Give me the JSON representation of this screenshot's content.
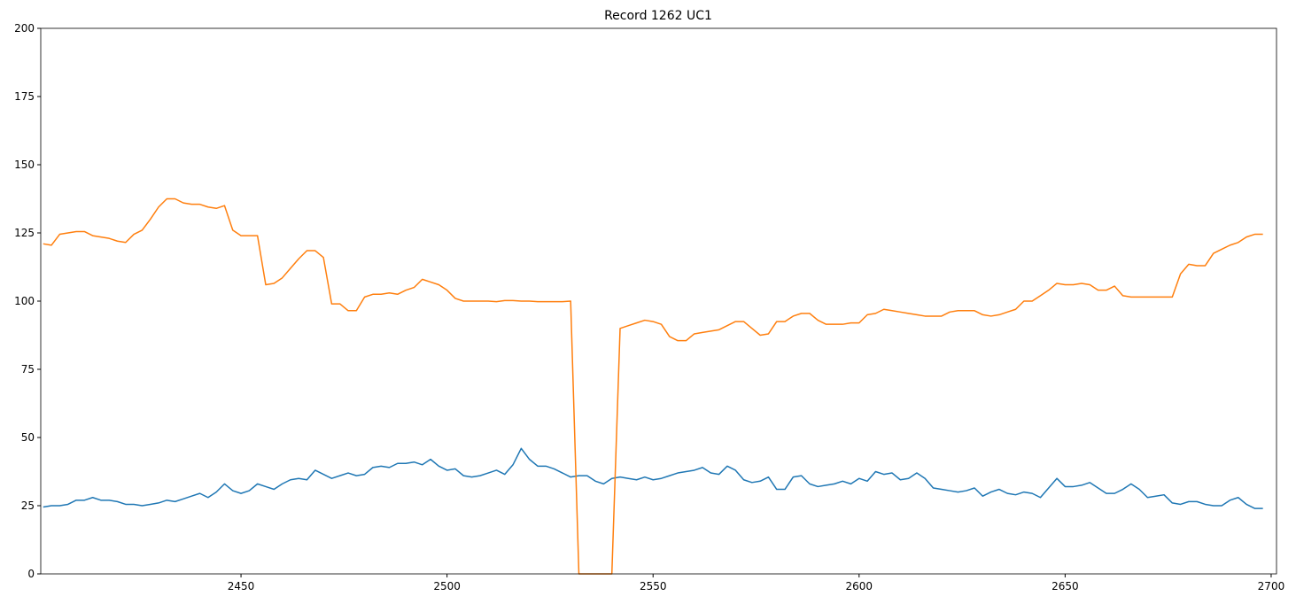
{
  "chart_data": {
    "type": "line",
    "title": "Record 1262 UC1",
    "x": [
      2402,
      2404,
      2406,
      2408,
      2410,
      2412,
      2414,
      2416,
      2418,
      2420,
      2422,
      2424,
      2426,
      2428,
      2430,
      2432,
      2434,
      2436,
      2438,
      2440,
      2442,
      2444,
      2446,
      2448,
      2450,
      2452,
      2454,
      2456,
      2458,
      2460,
      2462,
      2464,
      2466,
      2468,
      2470,
      2472,
      2474,
      2476,
      2478,
      2480,
      2482,
      2484,
      2486,
      2488,
      2490,
      2492,
      2494,
      2496,
      2498,
      2500,
      2502,
      2504,
      2506,
      2508,
      2510,
      2512,
      2514,
      2516,
      2518,
      2520,
      2522,
      2524,
      2526,
      2528,
      2530,
      2532,
      2534,
      2536,
      2538,
      2540,
      2542,
      2544,
      2546,
      2548,
      2550,
      2552,
      2554,
      2556,
      2558,
      2560,
      2562,
      2564,
      2566,
      2568,
      2570,
      2572,
      2574,
      2576,
      2578,
      2580,
      2582,
      2584,
      2586,
      2588,
      2590,
      2592,
      2594,
      2596,
      2598,
      2600,
      2602,
      2604,
      2606,
      2608,
      2610,
      2612,
      2614,
      2616,
      2618,
      2620,
      2622,
      2624,
      2626,
      2628,
      2630,
      2632,
      2634,
      2636,
      2638,
      2640,
      2642,
      2644,
      2646,
      2648,
      2650,
      2652,
      2654,
      2656,
      2658,
      2660,
      2662,
      2664,
      2666,
      2668,
      2670,
      2672,
      2674,
      2676,
      2678,
      2680,
      2682,
      2684,
      2686,
      2688,
      2690,
      2692,
      2694,
      2696,
      2698
    ],
    "series": [
      {
        "color": "#1f77b4",
        "values": [
          24.5,
          25,
          25,
          25.5,
          27,
          27,
          28,
          27,
          27,
          26.5,
          25.5,
          25.5,
          25,
          25.5,
          26,
          27,
          26.5,
          27.5,
          28.5,
          29.5,
          28,
          30,
          33,
          30.5,
          29.5,
          30.5,
          33,
          32,
          31,
          33,
          34.5,
          35,
          34.5,
          38,
          36.5,
          35,
          36,
          37,
          36,
          36.5,
          39,
          39.5,
          39,
          40.5,
          40.5,
          41,
          40,
          42,
          39.5,
          38,
          38.5,
          36,
          35.5,
          36,
          37,
          38,
          36.5,
          40,
          46,
          42,
          39.5,
          39.5,
          38.5,
          37,
          35.5,
          36,
          36,
          34,
          33,
          35,
          35.5,
          35,
          34.5,
          35.5,
          34.5,
          35,
          36,
          37,
          37.5,
          38,
          39,
          37,
          36.5,
          39.5,
          38,
          34.5,
          33.5,
          34,
          35.5,
          31,
          31,
          35.5,
          36,
          33,
          32,
          32.5,
          33,
          34,
          33,
          35,
          34,
          37.5,
          36.5,
          37,
          34.5,
          35,
          37,
          35,
          31.5,
          31,
          30.5,
          30,
          30.5,
          31.5,
          28.5,
          30,
          31,
          29.5,
          29,
          30,
          29.5,
          28,
          31.5,
          35,
          32,
          32,
          32.5,
          33.5,
          31.5,
          29.5,
          29.5,
          31,
          33,
          31,
          28,
          28.5,
          29,
          26,
          25.5,
          26.5,
          26.5,
          25.5,
          25,
          25,
          27,
          28,
          25.5,
          24,
          24
        ]
      },
      {
        "color": "#ff7f0e",
        "values": [
          121,
          120.5,
          124.5,
          125,
          125.5,
          125.5,
          124,
          123.5,
          123,
          122,
          121.5,
          124.5,
          126,
          130,
          134.5,
          137.5,
          137.5,
          136,
          135.5,
          135.5,
          134.5,
          134,
          135,
          126,
          124,
          124,
          124,
          106,
          106.5,
          108.5,
          112,
          115.5,
          118.5,
          118.5,
          116,
          99,
          99,
          96.5,
          96.5,
          101.5,
          102.5,
          102.5,
          103,
          102.5,
          104,
          105,
          108,
          107,
          106,
          104,
          101,
          100,
          100,
          100,
          100,
          99.8,
          100.2,
          100.2,
          100,
          100,
          99.8,
          99.8,
          99.8,
          99.8,
          100,
          0,
          0,
          0,
          0,
          0,
          90,
          91,
          92,
          93,
          92.5,
          91.5,
          87,
          85.5,
          85.5,
          88,
          88.5,
          89,
          89.5,
          91,
          92.5,
          92.5,
          90,
          87.5,
          88,
          92.5,
          92.5,
          94.5,
          95.5,
          95.5,
          93,
          91.5,
          91.5,
          91.5,
          92,
          92,
          95,
          95.5,
          97,
          96.5,
          96,
          95.5,
          95,
          94.5,
          94.5,
          94.5,
          96,
          96.5,
          96.5,
          96.5,
          95,
          94.5,
          95,
          96,
          97,
          100,
          100,
          102,
          104,
          106.5,
          106,
          106,
          106.5,
          106,
          104,
          104,
          105.5,
          102,
          101.5,
          101.5,
          101.5,
          101.5,
          101.5,
          101.5,
          110,
          113.5,
          113,
          113,
          117.5,
          119,
          120.5,
          121.5,
          123.5,
          124.5,
          124.5
        ]
      }
    ],
    "xlim": [
      2401.4,
      2701.3
    ],
    "xticks": [
      2450,
      2500,
      2550,
      2600,
      2650,
      2700
    ],
    "ylim": [
      0,
      200
    ],
    "yticks": [
      0,
      25,
      50,
      75,
      100,
      125,
      150,
      175,
      200
    ]
  }
}
